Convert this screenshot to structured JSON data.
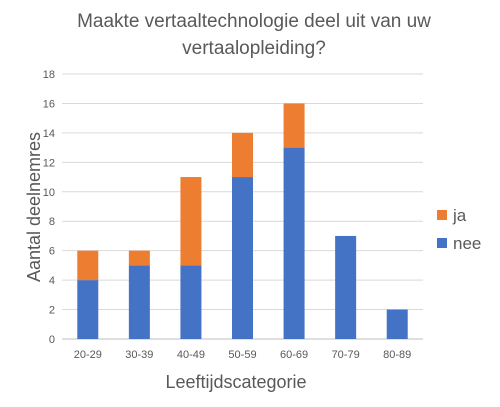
{
  "chart_data": {
    "type": "bar",
    "stacked": true,
    "title": [
      "Maakte vertaaltechnologie deel uit van uw",
      "vertaalopleiding?"
    ],
    "xlabel": "Leeftijdscategorie",
    "ylabel": "Aantal deelnemres",
    "categories": [
      "20-29",
      "30-39",
      "40-49",
      "50-59",
      "60-69",
      "70-79",
      "80-89"
    ],
    "ylim": [
      0,
      18
    ],
    "yticks": [
      0,
      2,
      4,
      6,
      8,
      10,
      12,
      14,
      16,
      18
    ],
    "grid": "horizontal",
    "legend_position": "right",
    "series": [
      {
        "name": "nee",
        "color": "#4472C4",
        "values": [
          4,
          5,
          5,
          11,
          13,
          7,
          2
        ]
      },
      {
        "name": "ja",
        "color": "#ED7D31",
        "values": [
          2,
          1,
          6,
          3,
          3,
          0,
          0
        ]
      }
    ],
    "legend_order": [
      "ja",
      "nee"
    ]
  }
}
